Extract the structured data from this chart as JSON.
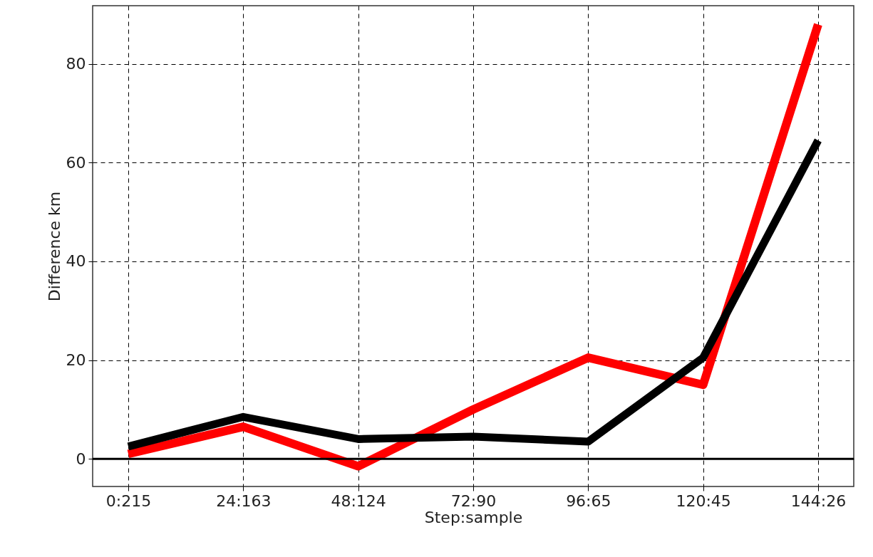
{
  "chart_data": {
    "type": "line",
    "xlabel": "Step:sample",
    "ylabel": "Difference km",
    "categories": [
      "0:215",
      "24:163",
      "48:124",
      "72:90",
      "96:65",
      "120:45",
      "144:26"
    ],
    "series": [
      {
        "color": "#ff0000",
        "values": [
          1,
          6.5,
          -1.5,
          10,
          20.5,
          15,
          88
        ]
      },
      {
        "color": "#000000",
        "values": [
          2.5,
          8.5,
          4,
          4.5,
          3.5,
          20.5,
          64.5
        ]
      }
    ],
    "ylim": [
      -5.6,
      91.8
    ],
    "yticks": [
      0,
      20,
      40,
      60,
      80
    ],
    "grid": true,
    "line_style": "solid",
    "ref_lines": [
      {
        "axis": "y",
        "value": 0,
        "color": "#000000"
      }
    ]
  }
}
